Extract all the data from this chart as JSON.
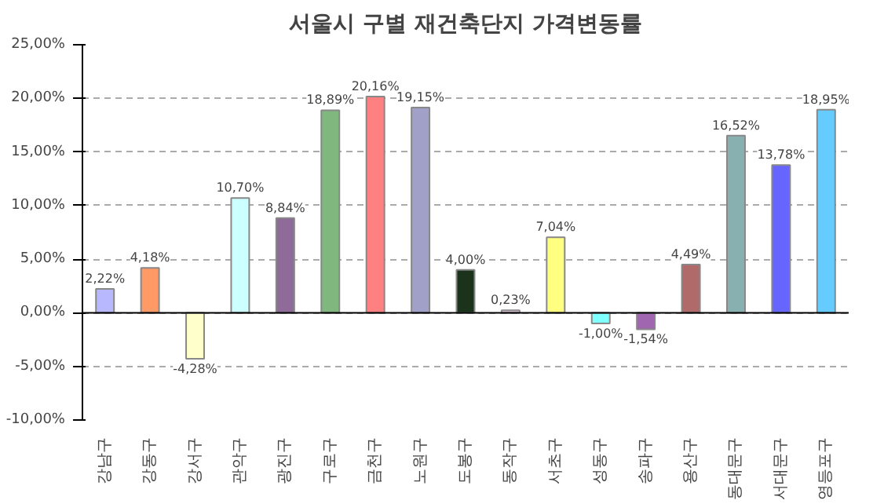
{
  "chart_data": {
    "type": "bar",
    "title": "서울시 구별 재건축단지 가격변동률",
    "categories": [
      "강남구",
      "강동구",
      "강서구",
      "관악구",
      "광진구",
      "구로구",
      "금천구",
      "노원구",
      "도봉구",
      "동작구",
      "서초구",
      "성동구",
      "송파구",
      "용산구",
      "동대문구",
      "서대문구",
      "영등포구"
    ],
    "values": [
      2.22,
      4.18,
      -4.28,
      10.7,
      8.84,
      18.89,
      20.16,
      19.15,
      4.0,
      0.23,
      7.04,
      -1.0,
      -1.54,
      4.49,
      16.52,
      13.78,
      18.95
    ],
    "value_labels": [
      "2,22%",
      "4,18%",
      "-4,28%",
      "10,70%",
      "8,84%",
      "18,89%",
      "20,16%",
      "19,15%",
      "4,00%",
      "0,23%",
      "7,04%",
      "-1,00%",
      "-1,54%",
      "4,49%",
      "16,52%",
      "13,78%",
      "18,95%"
    ],
    "colors": [
      "#b8b8ff",
      "#ff9966",
      "#ffffcc",
      "#ccffff",
      "#8e6b99",
      "#7fb77f",
      "#ff8080",
      "#a0a0c8",
      "#1a331a",
      "#e6cce6",
      "#ffff80",
      "#80ffff",
      "#a066b0",
      "#b06a6a",
      "#88b0b0",
      "#6666ff",
      "#66ccff"
    ],
    "ylim": [
      -10,
      25
    ],
    "yticks": [
      {
        "value": -10,
        "label": "-10,00%"
      },
      {
        "value": -5,
        "label": "-5,00%"
      },
      {
        "value": 0,
        "label": "0,00%"
      },
      {
        "value": 5,
        "label": "5,00%"
      },
      {
        "value": 10,
        "label": "10,00%"
      },
      {
        "value": 15,
        "label": "15,00%"
      },
      {
        "value": 20,
        "label": "20,00%"
      },
      {
        "value": 25,
        "label": "25,00%"
      }
    ],
    "grid": "y"
  }
}
